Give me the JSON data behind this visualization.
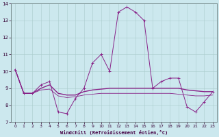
{
  "xlabel": "Windchill (Refroidissement éolien,°C)",
  "background_color": "#cce8ee",
  "grid_color": "#aacccc",
  "line_color": "#882288",
  "xlim": [
    -0.5,
    23.5
  ],
  "ylim": [
    7,
    14
  ],
  "xticks": [
    0,
    1,
    2,
    3,
    4,
    5,
    6,
    7,
    8,
    9,
    10,
    11,
    12,
    13,
    14,
    15,
    16,
    17,
    18,
    19,
    20,
    21,
    22,
    23
  ],
  "yticks": [
    7,
    8,
    9,
    10,
    11,
    12,
    13,
    14
  ],
  "hours": [
    0,
    1,
    2,
    3,
    4,
    5,
    6,
    7,
    8,
    9,
    10,
    11,
    12,
    13,
    14,
    15,
    16,
    17,
    18,
    19,
    20,
    21,
    22,
    23
  ],
  "values_main": [
    10.1,
    8.7,
    8.7,
    9.2,
    9.4,
    7.6,
    7.5,
    8.4,
    9.0,
    10.5,
    11.0,
    10.0,
    13.5,
    13.8,
    13.5,
    13.0,
    9.0,
    9.4,
    9.6,
    9.6,
    7.9,
    7.6,
    8.2,
    8.8
  ],
  "values_smooth1": [
    10.1,
    8.7,
    8.7,
    9.0,
    9.2,
    8.7,
    8.6,
    8.6,
    8.8,
    8.9,
    8.95,
    9.0,
    9.0,
    9.0,
    9.0,
    9.0,
    9.0,
    9.0,
    9.0,
    9.0,
    8.9,
    8.85,
    8.8,
    8.8
  ],
  "values_smooth2": [
    10.1,
    8.7,
    8.7,
    8.9,
    8.95,
    8.55,
    8.45,
    8.5,
    8.6,
    8.65,
    8.7,
    8.7,
    8.7,
    8.7,
    8.7,
    8.7,
    8.7,
    8.7,
    8.7,
    8.65,
    8.6,
    8.55,
    8.55,
    8.6
  ]
}
